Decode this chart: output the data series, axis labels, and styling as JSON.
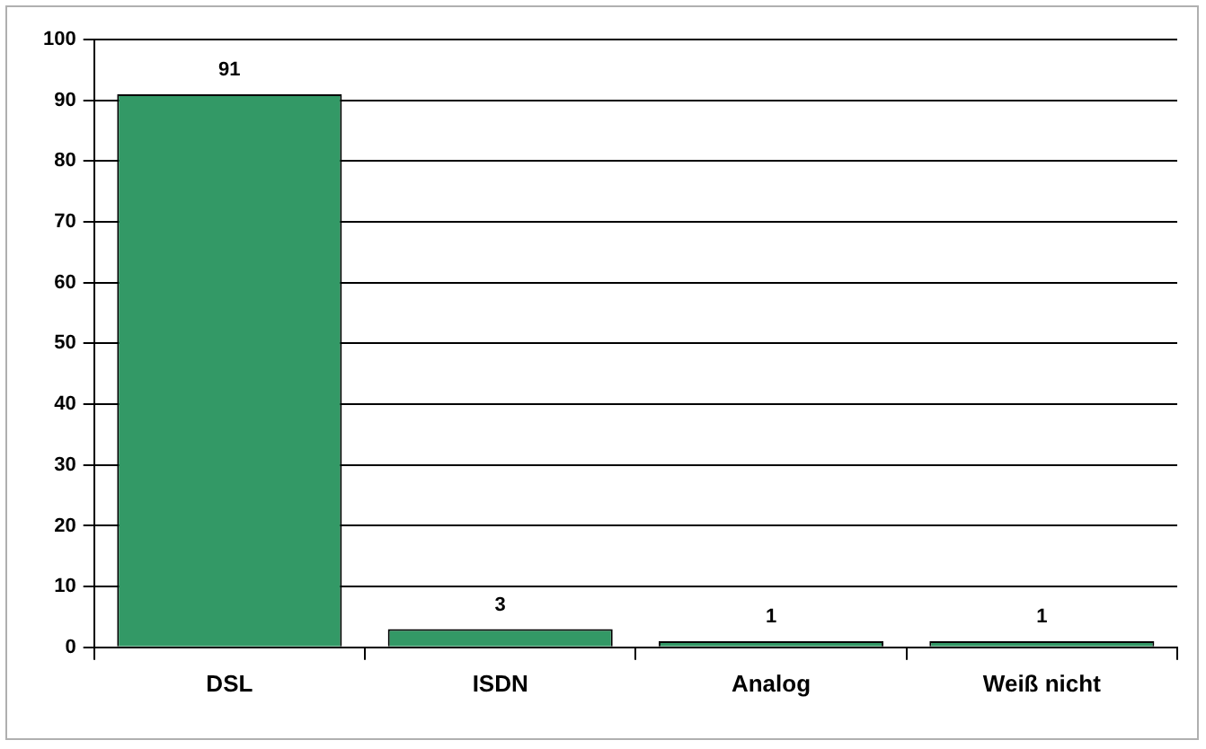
{
  "chart_data": {
    "type": "bar",
    "categories": [
      "DSL",
      "ISDN",
      "Analog",
      "Weiß nicht"
    ],
    "values": [
      91,
      3,
      1,
      1
    ],
    "color": "#339966",
    "ylim": [
      0,
      100
    ],
    "yticks": [
      0,
      10,
      20,
      30,
      40,
      50,
      60,
      70,
      80,
      90,
      100
    ],
    "grid": "y",
    "data_labels": true,
    "legend": false
  }
}
